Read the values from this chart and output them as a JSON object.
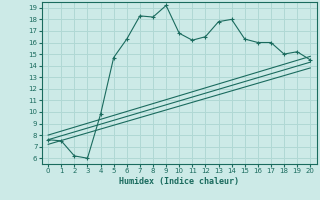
{
  "xlabel": "Humidex (Indice chaleur)",
  "bg_color": "#cceae7",
  "grid_color": "#b0d8d4",
  "line_color": "#1a6b5e",
  "xlim": [
    -0.5,
    20.5
  ],
  "ylim": [
    5.5,
    19.5
  ],
  "xticks": [
    0,
    1,
    2,
    3,
    4,
    5,
    6,
    7,
    8,
    9,
    10,
    11,
    12,
    13,
    14,
    15,
    16,
    17,
    18,
    19,
    20
  ],
  "yticks": [
    6,
    7,
    8,
    9,
    10,
    11,
    12,
    13,
    14,
    15,
    16,
    17,
    18,
    19
  ],
  "main_x": [
    0,
    1,
    2,
    3,
    4,
    5,
    6,
    7,
    8,
    9,
    10,
    11,
    12,
    13,
    14,
    15,
    16,
    17,
    18,
    19,
    20
  ],
  "main_y": [
    7.6,
    7.5,
    6.2,
    6.0,
    9.8,
    14.7,
    16.3,
    18.3,
    18.2,
    19.2,
    16.8,
    16.2,
    16.5,
    17.8,
    18.0,
    16.3,
    16.0,
    16.0,
    15.0,
    15.2,
    14.5
  ],
  "ref_lines": [
    {
      "x": [
        0,
        20
      ],
      "y": [
        7.2,
        13.8
      ]
    },
    {
      "x": [
        0,
        20
      ],
      "y": [
        7.6,
        14.3
      ]
    },
    {
      "x": [
        0,
        20
      ],
      "y": [
        8.0,
        14.8
      ]
    }
  ]
}
